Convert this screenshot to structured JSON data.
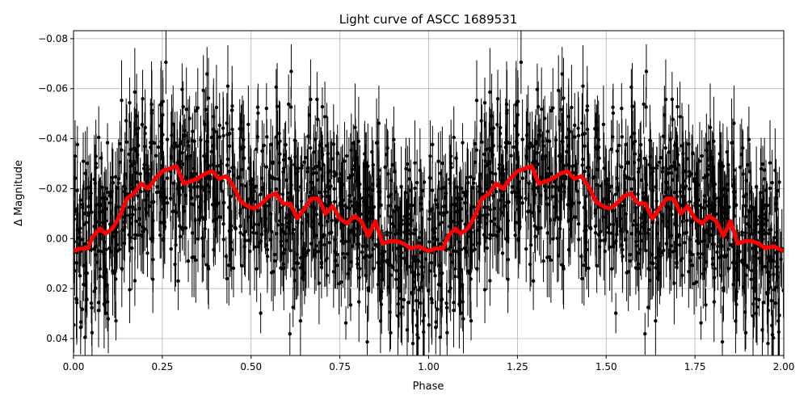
{
  "chart_data": {
    "type": "scatter",
    "title": "Light curve of ASCC 1689531",
    "xlabel": "Phase",
    "ylabel": "Δ Magnitude",
    "xlim": [
      0,
      2.0
    ],
    "ylim": [
      0.0468,
      -0.0832
    ],
    "y_inverted": true,
    "grid": true,
    "x_ticks": [
      "0.00",
      "0.25",
      "0.50",
      "0.75",
      "1.00",
      "1.25",
      "1.50",
      "1.75",
      "2.00"
    ],
    "y_ticks": [
      "−0.08",
      "−0.06",
      "−0.04",
      "−0.02",
      "0.00",
      "0.02",
      "0.04"
    ],
    "x_tick_values": [
      0,
      0.25,
      0.5,
      0.75,
      1.0,
      1.25,
      1.5,
      1.75,
      2.0
    ],
    "y_tick_values": [
      -0.08,
      -0.06,
      -0.04,
      -0.02,
      0,
      0.02,
      0.04
    ],
    "points_color": "#000000",
    "binned_curve": {
      "color": "#ff0000",
      "repeats_each_phase_unit": true,
      "phase": [
        0.0,
        0.02,
        0.04,
        0.055,
        0.075,
        0.09,
        0.11,
        0.13,
        0.15,
        0.17,
        0.19,
        0.21,
        0.23,
        0.25,
        0.27,
        0.29,
        0.31,
        0.33,
        0.35,
        0.37,
        0.39,
        0.41,
        0.43,
        0.45,
        0.47,
        0.49,
        0.51,
        0.53,
        0.55,
        0.57,
        0.59,
        0.61,
        0.63,
        0.65,
        0.67,
        0.69,
        0.71,
        0.73,
        0.75,
        0.77,
        0.79,
        0.81,
        0.83,
        0.85,
        0.87,
        0.89,
        0.91,
        0.93,
        0.95,
        0.97
      ],
      "magnitude": [
        0.005,
        0.004,
        0.004,
        -0.001,
        -0.004,
        -0.002,
        -0.004,
        -0.009,
        -0.016,
        -0.018,
        -0.022,
        -0.02,
        -0.024,
        -0.027,
        -0.028,
        -0.029,
        -0.022,
        -0.023,
        -0.024,
        -0.026,
        -0.027,
        -0.024,
        -0.025,
        -0.021,
        -0.015,
        -0.013,
        -0.012,
        -0.014,
        -0.017,
        -0.018,
        -0.014,
        -0.014,
        -0.008,
        -0.012,
        -0.016,
        -0.016,
        -0.01,
        -0.013,
        -0.008,
        -0.006,
        -0.009,
        -0.007,
        -0.001,
        -0.007,
        0.002,
        0.001,
        0.001,
        0.002,
        0.004,
        0.003
      ]
    }
  }
}
